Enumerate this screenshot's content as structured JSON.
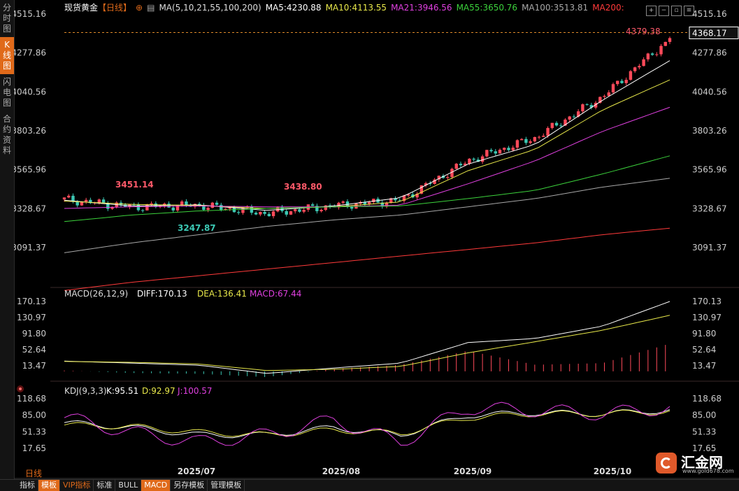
{
  "side_tabs": [
    {
      "label": "分时图",
      "active": false
    },
    {
      "label": "K线图",
      "active": true
    },
    {
      "label": "闪电图",
      "active": false
    },
    {
      "label": "合约资料",
      "active": false
    }
  ],
  "header": {
    "title": "现货黄金",
    "period": "【日线】",
    "ma_label": "MA(5,10,21,55,100,200)",
    "ma": [
      {
        "text": "MA5:4230.88",
        "color": "#ffffff"
      },
      {
        "text": "MA10:4113.55",
        "color": "#e8e84a"
      },
      {
        "text": "MA21:3946.56",
        "color": "#e040e0"
      },
      {
        "text": "MA55:3650.76",
        "color": "#3cd23c"
      },
      {
        "text": "MA100:3513.81",
        "color": "#a8a8a8"
      },
      {
        "text": "MA200:",
        "color": "#ff3a3a"
      }
    ]
  },
  "price_axis": [
    "4515.16",
    "4277.86",
    "4040.56",
    "3803.26",
    "3565.96",
    "3328.67",
    "3091.37"
  ],
  "last_price": "4368.17",
  "max_label": "4379.38",
  "annotations": [
    {
      "text": "3451.14",
      "type": "high"
    },
    {
      "text": "3438.80",
      "type": "high"
    },
    {
      "text": "3247.87",
      "type": "low"
    }
  ],
  "macd": {
    "label": "MACD(26,12,9)",
    "diff": "DIFF:170.13",
    "dea": "DEA:136.41",
    "macd": "MACD:67.44",
    "axis": [
      "170.13",
      "130.97",
      "91.80",
      "52.64",
      "13.47"
    ]
  },
  "kdj": {
    "label": "KDJ(9,3,3)",
    "k": "K:95.51",
    "d": "D:92.97",
    "j": "J:100.57",
    "axis": [
      "118.68",
      "85.00",
      "51.33",
      "17.65"
    ]
  },
  "x_labels": [
    "2025/07",
    "2025/08",
    "2025/09",
    "2025/10"
  ],
  "bottom_period": "日线",
  "bottom_tabs": [
    {
      "label": "指标"
    },
    {
      "label": "模板",
      "active": true
    },
    {
      "label": "VIP指标",
      "vip": true
    },
    {
      "label": "标准"
    },
    {
      "label": "BULL"
    },
    {
      "label": "MACD",
      "active": true
    },
    {
      "label": "另存模板"
    },
    {
      "label": "管理模板"
    }
  ],
  "logo": {
    "text": "汇金网",
    "url": "www.gold678.com"
  },
  "colors": {
    "up": "#ff4a5a",
    "down": "#3cc8b4",
    "ma5": "#ffffff",
    "ma10": "#e8e84a",
    "ma21": "#e040e0",
    "ma55": "#3cd23c",
    "ma100": "#a8a8a8",
    "ma200": "#ff3a3a"
  },
  "chart_data": {
    "type": "candlestick",
    "x": [
      "2025-06-16",
      "2025-06-30",
      "2025-07-14",
      "2025-07-28",
      "2025-08-11",
      "2025-08-25",
      "2025-09-08",
      "2025-09-22",
      "2025-10-06",
      "2025-10-16"
    ],
    "close": [
      3385,
      3340,
      3350,
      3300,
      3345,
      3380,
      3620,
      3760,
      4010,
      4368.17
    ],
    "series": [
      {
        "name": "MA5",
        "values": [
          3380,
          3345,
          3352,
          3318,
          3345,
          3395,
          3600,
          3720,
          3990,
          4230.88
        ]
      },
      {
        "name": "MA10",
        "values": [
          3375,
          3355,
          3348,
          3330,
          3340,
          3370,
          3560,
          3690,
          3930,
          4113.55
        ]
      },
      {
        "name": "MA21",
        "values": [
          3330,
          3340,
          3345,
          3340,
          3340,
          3350,
          3480,
          3620,
          3800,
          3946.56
        ]
      },
      {
        "name": "MA55",
        "values": [
          3250,
          3290,
          3315,
          3330,
          3340,
          3345,
          3390,
          3440,
          3540,
          3650.76
        ]
      },
      {
        "name": "MA100",
        "values": [
          3060,
          3120,
          3170,
          3220,
          3260,
          3290,
          3340,
          3390,
          3460,
          3513.81
        ]
      },
      {
        "name": "MA200",
        "values": [
          2830,
          2880,
          2920,
          2960,
          3000,
          3040,
          3080,
          3120,
          3170,
          3210
        ]
      }
    ],
    "macd_series": [
      {
        "name": "DIFF",
        "values": [
          25,
          20,
          15,
          -5,
          8,
          20,
          70,
          80,
          110,
          170.13
        ]
      },
      {
        "name": "DEA",
        "values": [
          24,
          22,
          18,
          2,
          5,
          12,
          45,
          72,
          100,
          136.41
        ]
      }
    ],
    "kdj_series": [
      {
        "name": "K",
        "values": [
          70,
          60,
          45,
          45,
          60,
          45,
          85,
          90,
          88,
          95.51
        ]
      },
      {
        "name": "D",
        "values": [
          65,
          62,
          50,
          45,
          55,
          48,
          80,
          88,
          88,
          92.97
        ]
      },
      {
        "name": "J",
        "values": [
          80,
          50,
          30,
          45,
          75,
          30,
          100,
          95,
          88,
          100.57
        ]
      }
    ],
    "ylim": [
      2830,
      4560
    ],
    "macd_ylim": [
      -20,
      180
    ],
    "kdj_ylim": [
      5,
      125
    ]
  }
}
